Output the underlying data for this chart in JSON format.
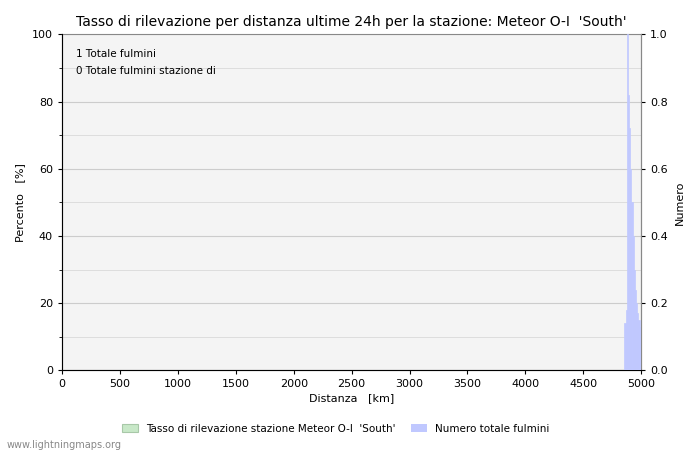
{
  "title": "Tasso di rilevazione per distanza ultime 24h per la stazione: Meteor O-I  'South'",
  "xlabel": "Distanza   [km]",
  "ylabel_left": "Percento   [%]",
  "ylabel_right": "Numero",
  "annotation_line1": "1 Totale fulmini",
  "annotation_line2": "0 Totale fulmini stazione di",
  "xlim": [
    0,
    5000
  ],
  "ylim_left": [
    0,
    100
  ],
  "ylim_right": [
    0,
    1.0
  ],
  "xticks": [
    0,
    500,
    1000,
    1500,
    2000,
    2500,
    3000,
    3500,
    4000,
    4500,
    5000
  ],
  "yticks_left": [
    0,
    20,
    40,
    60,
    80,
    100
  ],
  "yticks_right": [
    0.0,
    0.2,
    0.4,
    0.6,
    0.8,
    1.0
  ],
  "minor_yticks_left": [
    10,
    30,
    50,
    70,
    90
  ],
  "bar_color": "#c8e8c8",
  "bar_edge_color": "#a8c8a8",
  "spike_color": "#c0c8ff",
  "spike_x": [
    4860,
    4870,
    4880,
    4890,
    4900,
    4910,
    4920,
    4930,
    4940,
    4950,
    4960,
    4970,
    4980,
    4990,
    5000
  ],
  "spike_h": [
    0.14,
    0.18,
    1.0,
    0.82,
    0.72,
    0.6,
    0.5,
    0.4,
    0.3,
    0.24,
    0.2,
    0.17,
    0.15,
    0.13,
    0.1
  ],
  "legend_label_bar": "Tasso di rilevazione stazione Meteor O-I  'South'",
  "legend_label_line": "Numero totale fulmini",
  "watermark": "www.lightningmaps.org",
  "bg_color": "#ffffff",
  "plot_bg_color": "#f4f4f4",
  "grid_color": "#cccccc",
  "title_fontsize": 10,
  "axis_fontsize": 8,
  "tick_fontsize": 8
}
